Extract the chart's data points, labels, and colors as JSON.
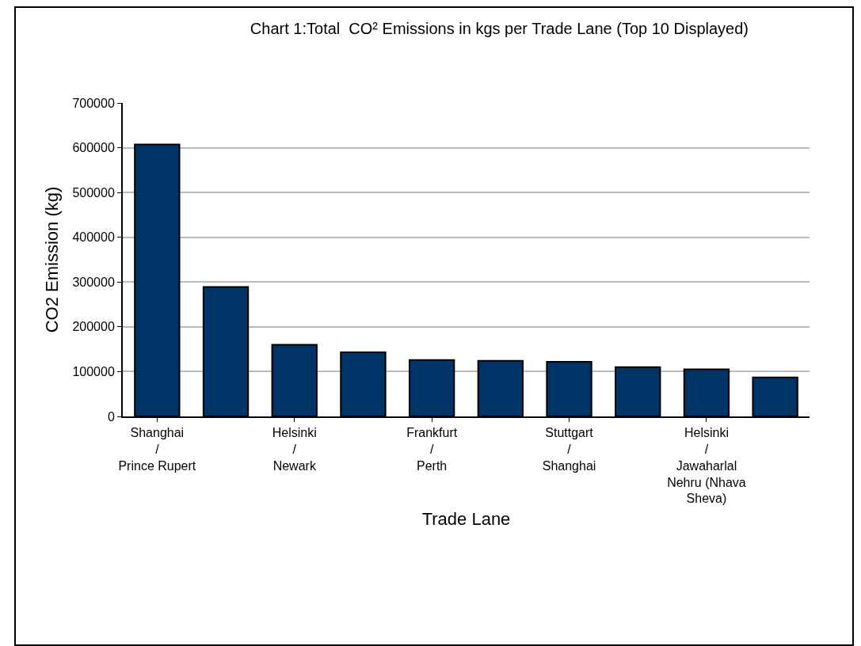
{
  "chart_data": {
    "type": "bar",
    "title": "Chart 1:Total  CO² Emissions in kgs per Trade Lane (Top 10 Displayed)",
    "xlabel": "Trade Lane",
    "ylabel": "CO2 Emission (kg)",
    "categories": [
      "Shanghai\n/\nPrince Rupert",
      null,
      "Helsinki\n/\nNewark",
      null,
      "Frankfurt\n/\nPerth",
      null,
      "Stuttgart\n/\nShanghai",
      null,
      "Helsinki\n/\nJawaharlal\nNehru (Nhava\nSheva)",
      null
    ],
    "values": [
      607000,
      289000,
      160000,
      143000,
      126000,
      124000,
      122000,
      110000,
      105000,
      87000
    ],
    "color": "#003366",
    "ylim": [
      0,
      700000
    ],
    "yticks": [
      0,
      100000,
      200000,
      300000,
      400000,
      500000,
      600000,
      700000
    ],
    "grid": "y",
    "legend": false
  }
}
